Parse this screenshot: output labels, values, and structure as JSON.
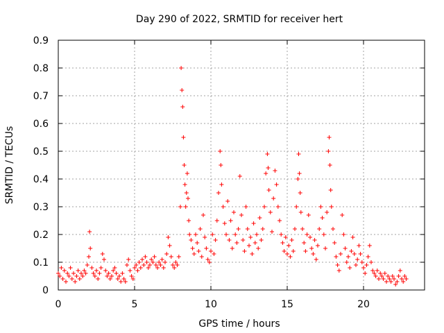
{
  "chart_data": {
    "type": "scatter",
    "title": "Day 290 of 2022, SRMTID for receiver hert",
    "xlabel": "GPS time / hours",
    "ylabel": "SRMTID / TECUs",
    "xlim": [
      0,
      24
    ],
    "ylim": [
      0,
      0.9
    ],
    "xticks": [
      0,
      5,
      10,
      15,
      20
    ],
    "yticks": [
      0,
      0.1,
      0.2,
      0.3,
      0.4,
      0.5,
      0.6,
      0.7,
      0.8,
      0.9
    ],
    "xtick_labels": [
      "0",
      "5",
      "10",
      "15",
      "20"
    ],
    "ytick_labels": [
      "0",
      "0.1",
      "0.2",
      "0.3",
      "0.4",
      "0.5",
      "0.6",
      "0.7",
      "0.8",
      "0.9"
    ],
    "grid": true,
    "marker": "+",
    "color": "#ff0000",
    "series": [
      {
        "name": "SRMTID",
        "points": [
          [
            0.0,
            0.06
          ],
          [
            0.1,
            0.05
          ],
          [
            0.2,
            0.08
          ],
          [
            0.3,
            0.04
          ],
          [
            0.4,
            0.07
          ],
          [
            0.5,
            0.03
          ],
          [
            0.6,
            0.06
          ],
          [
            0.7,
            0.05
          ],
          [
            0.8,
            0.08
          ],
          [
            0.9,
            0.04
          ],
          [
            1.0,
            0.06
          ],
          [
            1.1,
            0.03
          ],
          [
            1.2,
            0.05
          ],
          [
            1.3,
            0.07
          ],
          [
            1.4,
            0.04
          ],
          [
            1.5,
            0.06
          ],
          [
            1.6,
            0.05
          ],
          [
            1.7,
            0.07
          ],
          [
            1.8,
            0.06
          ],
          [
            1.9,
            0.09
          ],
          [
            2.0,
            0.12
          ],
          [
            2.05,
            0.21
          ],
          [
            2.1,
            0.15
          ],
          [
            2.2,
            0.08
          ],
          [
            2.3,
            0.06
          ],
          [
            2.4,
            0.05
          ],
          [
            2.5,
            0.07
          ],
          [
            2.6,
            0.04
          ],
          [
            2.7,
            0.06
          ],
          [
            2.8,
            0.08
          ],
          [
            2.9,
            0.13
          ],
          [
            3.0,
            0.11
          ],
          [
            3.1,
            0.07
          ],
          [
            3.2,
            0.05
          ],
          [
            3.3,
            0.06
          ],
          [
            3.4,
            0.04
          ],
          [
            3.5,
            0.05
          ],
          [
            3.6,
            0.07
          ],
          [
            3.7,
            0.08
          ],
          [
            3.8,
            0.06
          ],
          [
            3.9,
            0.04
          ],
          [
            4.0,
            0.05
          ],
          [
            4.1,
            0.03
          ],
          [
            4.2,
            0.06
          ],
          [
            4.3,
            0.04
          ],
          [
            4.4,
            0.03
          ],
          [
            4.5,
            0.09
          ],
          [
            4.6,
            0.11
          ],
          [
            4.7,
            0.07
          ],
          [
            4.8,
            0.05
          ],
          [
            4.9,
            0.04
          ],
          [
            5.0,
            0.08
          ],
          [
            5.1,
            0.09
          ],
          [
            5.2,
            0.07
          ],
          [
            5.3,
            0.1
          ],
          [
            5.4,
            0.08
          ],
          [
            5.5,
            0.11
          ],
          [
            5.6,
            0.09
          ],
          [
            5.7,
            0.12
          ],
          [
            5.8,
            0.1
          ],
          [
            5.9,
            0.08
          ],
          [
            6.0,
            0.09
          ],
          [
            6.1,
            0.11
          ],
          [
            6.2,
            0.1
          ],
          [
            6.3,
            0.12
          ],
          [
            6.4,
            0.09
          ],
          [
            6.5,
            0.08
          ],
          [
            6.6,
            0.1
          ],
          [
            6.7,
            0.09
          ],
          [
            6.8,
            0.11
          ],
          [
            6.9,
            0.08
          ],
          [
            7.0,
            0.1
          ],
          [
            7.1,
            0.13
          ],
          [
            7.2,
            0.19
          ],
          [
            7.3,
            0.16
          ],
          [
            7.4,
            0.12
          ],
          [
            7.5,
            0.09
          ],
          [
            7.6,
            0.08
          ],
          [
            7.7,
            0.1
          ],
          [
            7.8,
            0.09
          ],
          [
            7.9,
            0.12
          ],
          [
            8.0,
            0.3
          ],
          [
            8.05,
            0.8
          ],
          [
            8.1,
            0.72
          ],
          [
            8.15,
            0.66
          ],
          [
            8.2,
            0.55
          ],
          [
            8.25,
            0.45
          ],
          [
            8.3,
            0.38
          ],
          [
            8.35,
            0.3
          ],
          [
            8.4,
            0.35
          ],
          [
            8.45,
            0.42
          ],
          [
            8.5,
            0.33
          ],
          [
            8.55,
            0.25
          ],
          [
            8.6,
            0.2
          ],
          [
            8.7,
            0.18
          ],
          [
            8.8,
            0.15
          ],
          [
            8.9,
            0.13
          ],
          [
            9.0,
            0.2
          ],
          [
            9.1,
            0.17
          ],
          [
            9.2,
            0.14
          ],
          [
            9.3,
            0.22
          ],
          [
            9.4,
            0.12
          ],
          [
            9.5,
            0.27
          ],
          [
            9.6,
            0.19
          ],
          [
            9.7,
            0.15
          ],
          [
            9.8,
            0.11
          ],
          [
            9.9,
            0.1
          ],
          [
            10.0,
            0.14
          ],
          [
            10.1,
            0.2
          ],
          [
            10.2,
            0.13
          ],
          [
            10.3,
            0.18
          ],
          [
            10.4,
            0.25
          ],
          [
            10.5,
            0.35
          ],
          [
            10.6,
            0.5
          ],
          [
            10.65,
            0.45
          ],
          [
            10.7,
            0.38
          ],
          [
            10.8,
            0.3
          ],
          [
            10.9,
            0.24
          ],
          [
            11.0,
            0.2
          ],
          [
            11.1,
            0.32
          ],
          [
            11.2,
            0.18
          ],
          [
            11.3,
            0.25
          ],
          [
            11.4,
            0.15
          ],
          [
            11.5,
            0.28
          ],
          [
            11.6,
            0.2
          ],
          [
            11.7,
            0.17
          ],
          [
            11.8,
            0.22
          ],
          [
            11.9,
            0.41
          ],
          [
            12.0,
            0.27
          ],
          [
            12.1,
            0.18
          ],
          [
            12.2,
            0.14
          ],
          [
            12.3,
            0.3
          ],
          [
            12.4,
            0.22
          ],
          [
            12.5,
            0.16
          ],
          [
            12.6,
            0.19
          ],
          [
            12.7,
            0.13
          ],
          [
            12.8,
            0.24
          ],
          [
            12.9,
            0.17
          ],
          [
            13.0,
            0.2
          ],
          [
            13.1,
            0.15
          ],
          [
            13.2,
            0.26
          ],
          [
            13.3,
            0.18
          ],
          [
            13.4,
            0.22
          ],
          [
            13.5,
            0.3
          ],
          [
            13.6,
            0.42
          ],
          [
            13.7,
            0.49
          ],
          [
            13.75,
            0.44
          ],
          [
            13.8,
            0.36
          ],
          [
            13.9,
            0.28
          ],
          [
            14.0,
            0.21
          ],
          [
            14.1,
            0.33
          ],
          [
            14.2,
            0.43
          ],
          [
            14.3,
            0.38
          ],
          [
            14.4,
            0.3
          ],
          [
            14.5,
            0.25
          ],
          [
            14.6,
            0.2
          ],
          [
            14.7,
            0.17
          ],
          [
            14.8,
            0.14
          ],
          [
            14.9,
            0.19
          ],
          [
            15.0,
            0.13
          ],
          [
            15.1,
            0.16
          ],
          [
            15.2,
            0.12
          ],
          [
            15.3,
            0.18
          ],
          [
            15.4,
            0.14
          ],
          [
            15.5,
            0.22
          ],
          [
            15.6,
            0.3
          ],
          [
            15.7,
            0.4
          ],
          [
            15.75,
            0.49
          ],
          [
            15.8,
            0.42
          ],
          [
            15.85,
            0.35
          ],
          [
            15.9,
            0.28
          ],
          [
            16.0,
            0.22
          ],
          [
            16.1,
            0.17
          ],
          [
            16.2,
            0.14
          ],
          [
            16.3,
            0.2
          ],
          [
            16.4,
            0.27
          ],
          [
            16.5,
            0.19
          ],
          [
            16.6,
            0.15
          ],
          [
            16.7,
            0.13
          ],
          [
            16.8,
            0.18
          ],
          [
            16.9,
            0.11
          ],
          [
            17.0,
            0.16
          ],
          [
            17.1,
            0.22
          ],
          [
            17.2,
            0.3
          ],
          [
            17.3,
            0.26
          ],
          [
            17.4,
            0.2
          ],
          [
            17.5,
            0.15
          ],
          [
            17.6,
            0.28
          ],
          [
            17.7,
            0.5
          ],
          [
            17.75,
            0.55
          ],
          [
            17.8,
            0.45
          ],
          [
            17.85,
            0.36
          ],
          [
            17.9,
            0.3
          ],
          [
            18.0,
            0.22
          ],
          [
            18.1,
            0.17
          ],
          [
            18.2,
            0.12
          ],
          [
            18.3,
            0.09
          ],
          [
            18.4,
            0.07
          ],
          [
            18.5,
            0.13
          ],
          [
            18.6,
            0.27
          ],
          [
            18.7,
            0.2
          ],
          [
            18.8,
            0.15
          ],
          [
            18.9,
            0.1
          ],
          [
            19.0,
            0.12
          ],
          [
            19.1,
            0.08
          ],
          [
            19.2,
            0.14
          ],
          [
            19.3,
            0.19
          ],
          [
            19.4,
            0.13
          ],
          [
            19.5,
            0.09
          ],
          [
            19.6,
            0.11
          ],
          [
            19.7,
            0.16
          ],
          [
            19.8,
            0.13
          ],
          [
            19.9,
            0.1
          ],
          [
            20.0,
            0.08
          ],
          [
            20.1,
            0.06
          ],
          [
            20.2,
            0.09
          ],
          [
            20.3,
            0.12
          ],
          [
            20.4,
            0.16
          ],
          [
            20.5,
            0.1
          ],
          [
            20.6,
            0.07
          ],
          [
            20.7,
            0.06
          ],
          [
            20.8,
            0.05
          ],
          [
            20.9,
            0.07
          ],
          [
            21.0,
            0.04
          ],
          [
            21.1,
            0.06
          ],
          [
            21.2,
            0.05
          ],
          [
            21.3,
            0.04
          ],
          [
            21.4,
            0.06
          ],
          [
            21.5,
            0.03
          ],
          [
            21.6,
            0.05
          ],
          [
            21.7,
            0.04
          ],
          [
            21.8,
            0.03
          ],
          [
            21.9,
            0.05
          ],
          [
            22.0,
            0.04
          ],
          [
            22.1,
            0.02
          ],
          [
            22.2,
            0.03
          ],
          [
            22.3,
            0.05
          ],
          [
            22.4,
            0.07
          ],
          [
            22.5,
            0.04
          ],
          [
            22.6,
            0.03
          ],
          [
            22.7,
            0.05
          ],
          [
            22.8,
            0.04
          ]
        ]
      }
    ]
  }
}
